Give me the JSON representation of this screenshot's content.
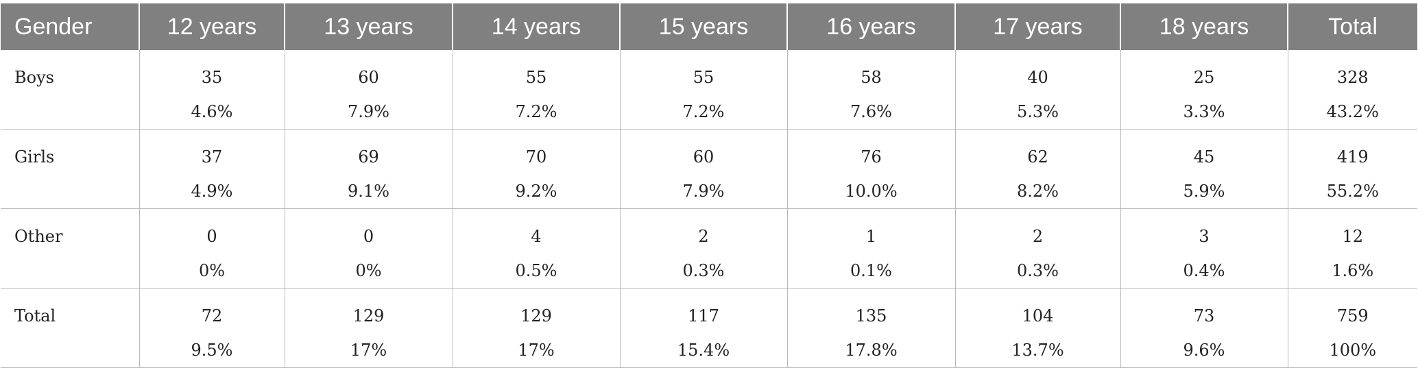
{
  "table": {
    "headers": [
      "Gender",
      "12 years",
      "13 years",
      "14 years",
      "15 years",
      "16 years",
      "17 years",
      "18 years",
      "Total"
    ],
    "rows": [
      {
        "label": "Boys",
        "cells": [
          {
            "count": "35",
            "pct": "4.6%"
          },
          {
            "count": "60",
            "pct": "7.9%"
          },
          {
            "count": "55",
            "pct": "7.2%"
          },
          {
            "count": "55",
            "pct": "7.2%"
          },
          {
            "count": "58",
            "pct": "7.6%"
          },
          {
            "count": "40",
            "pct": "5.3%"
          },
          {
            "count": "25",
            "pct": "3.3%"
          },
          {
            "count": "328",
            "pct": "43.2%"
          }
        ]
      },
      {
        "label": "Girls",
        "cells": [
          {
            "count": "37",
            "pct": "4.9%"
          },
          {
            "count": "69",
            "pct": "9.1%"
          },
          {
            "count": "70",
            "pct": "9.2%"
          },
          {
            "count": "60",
            "pct": "7.9%"
          },
          {
            "count": "76",
            "pct": "10.0%"
          },
          {
            "count": "62",
            "pct": "8.2%"
          },
          {
            "count": "45",
            "pct": "5.9%"
          },
          {
            "count": "419",
            "pct": "55.2%"
          }
        ]
      },
      {
        "label": "Other",
        "cells": [
          {
            "count": "0",
            "pct": "0%"
          },
          {
            "count": "0",
            "pct": "0%"
          },
          {
            "count": "4",
            "pct": "0.5%"
          },
          {
            "count": "2",
            "pct": "0.3%"
          },
          {
            "count": "1",
            "pct": "0.1%"
          },
          {
            "count": "2",
            "pct": "0.3%"
          },
          {
            "count": "3",
            "pct": "0.4%"
          },
          {
            "count": "12",
            "pct": "1.6%"
          }
        ]
      },
      {
        "label": "Total",
        "cells": [
          {
            "count": "72",
            "pct": "9.5%"
          },
          {
            "count": "129",
            "pct": "17%"
          },
          {
            "count": "129",
            "pct": "17%"
          },
          {
            "count": "117",
            "pct": "15.4%"
          },
          {
            "count": "135",
            "pct": "17.8%"
          },
          {
            "count": "104",
            "pct": "13.7%"
          },
          {
            "count": "73",
            "pct": "9.6%"
          },
          {
            "count": "759",
            "pct": "100%"
          }
        ]
      }
    ]
  },
  "colors": {
    "header_background": "#7f807f",
    "header_text": "#ffffff",
    "grid_line": "#b8b8b8",
    "body_text": "#222222"
  }
}
